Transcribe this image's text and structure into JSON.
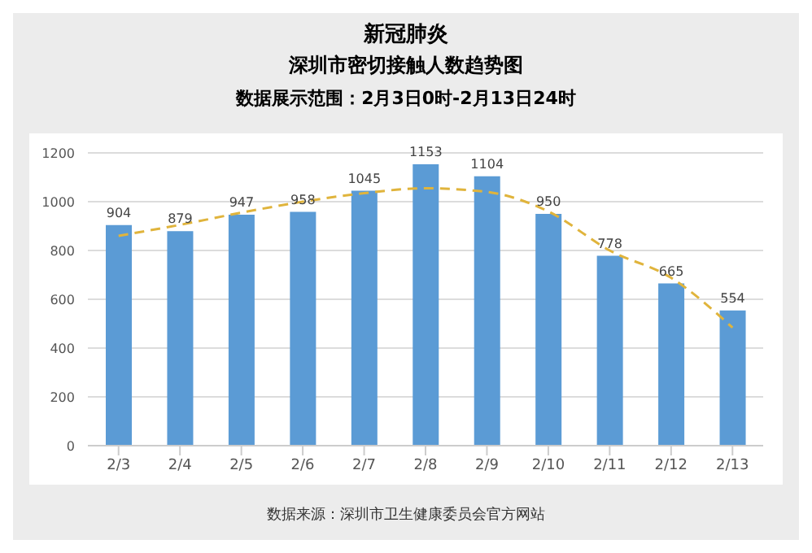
{
  "chart_data": {
    "type": "bar",
    "title": "新冠肺炎",
    "subtitle": "深圳市密切接触人数趋势图",
    "annotations": [
      "数据展示范围：2月3日0时-2月13日24时",
      "数据来源：深圳市卫生健康委员会官方网站"
    ],
    "categories": [
      "2/3",
      "2/4",
      "2/5",
      "2/6",
      "2/7",
      "2/8",
      "2/9",
      "2/10",
      "2/11",
      "2/12",
      "2/13"
    ],
    "series": [
      {
        "color": "#5b9bd5",
        "values": [
          904,
          879,
          947,
          958,
          1045,
          1153,
          1104,
          950,
          778,
          665,
          554
        ],
        "value_labels": [
          "904",
          "879",
          "947",
          "958",
          "1045",
          "1153",
          "1104",
          "950",
          "778",
          "665",
          "554"
        ]
      },
      {
        "type": "line",
        "color": "#e0b43c",
        "line_style": "dashed",
        "marker": "none",
        "values": [
          860,
          905,
          955,
          1000,
          1035,
          1055,
          1040,
          960,
          800,
          688,
          484
        ]
      }
    ],
    "ylim": [
      0,
      1200
    ],
    "yticks": [
      0,
      200,
      400,
      600,
      800,
      1000,
      1200
    ],
    "grid": "y"
  }
}
